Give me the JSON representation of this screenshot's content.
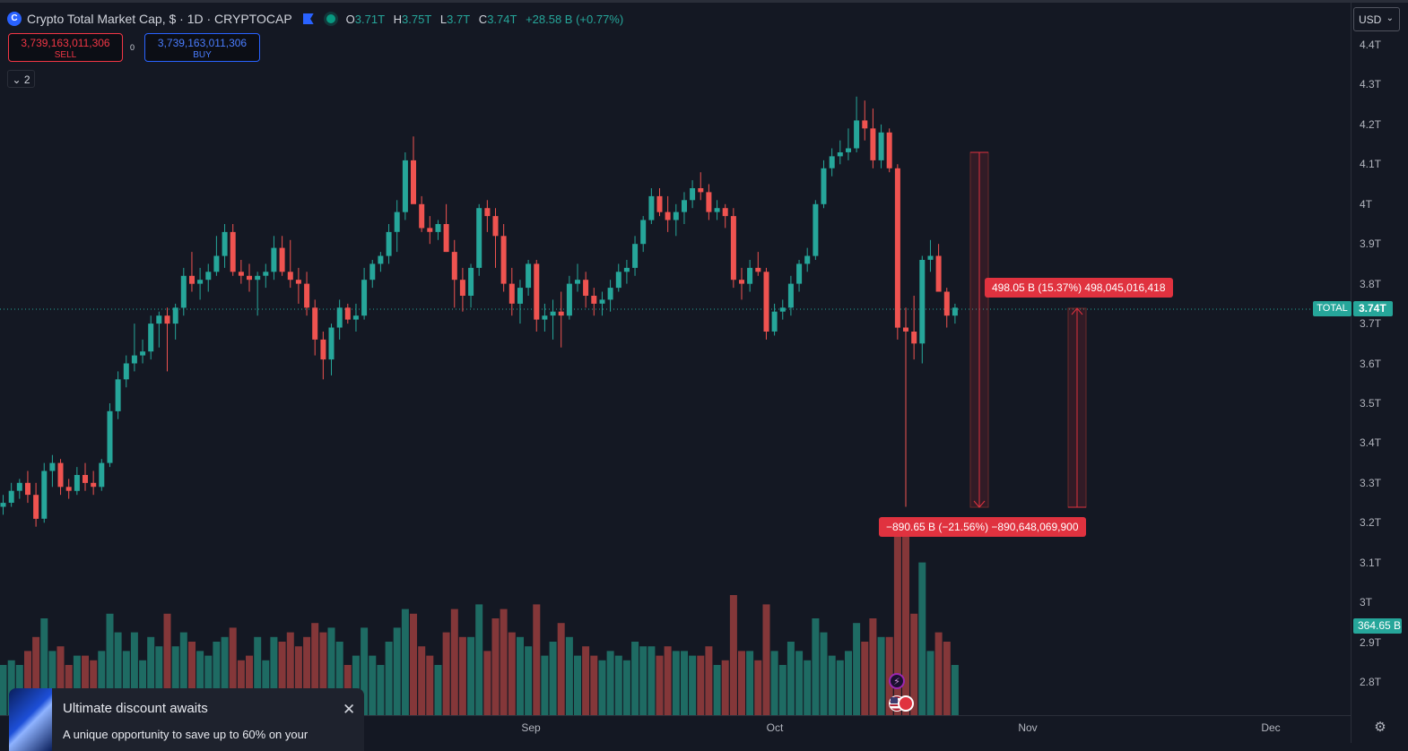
{
  "header": {
    "logo_icon": "crypto-cap-logo-icon",
    "symbol_title": "Crypto Total Market Cap, $ · 1D · CRYPTOCAP",
    "ohlc": {
      "o_label": "O",
      "o": "3.71T",
      "h_label": "H",
      "h": "3.75T",
      "l_label": "L",
      "l": "3.7T",
      "c_label": "C",
      "c": "3.74T",
      "change": "+28.58 B (+0.77%)"
    }
  },
  "trade": {
    "sell_price": "3,739,163,011,306",
    "sell_label": "SELL",
    "spread": "0",
    "buy_price": "3,739,163,011,306",
    "buy_label": "BUY"
  },
  "indicators_toggle": {
    "chevron": "⌄",
    "count": "2"
  },
  "currency": {
    "label": "USD",
    "chevron": "⌄"
  },
  "price_axis": [
    "4.4T",
    "4.3T",
    "4.2T",
    "4.1T",
    "4T",
    "3.9T",
    "3.8T",
    "3.7T",
    "3.6T",
    "3.5T",
    "3.4T",
    "3.3T",
    "3.2T",
    "3.1T",
    "3T",
    "2.9T",
    "2.8T"
  ],
  "time_axis": [
    "Sep",
    "Oct",
    "Nov",
    "Dec"
  ],
  "last_price": {
    "symbol": "TOTAL",
    "value": "3.74T",
    "volume": "364.65 B"
  },
  "measures": {
    "up": "498.05 B (15.37%) 498,045,016,418",
    "down": "−890.65 B (−21.56%) −890,648,069,900"
  },
  "promo": {
    "title": "Ultimate discount awaits",
    "text": "A unique opportunity to save up to 60% on your",
    "close": "✕"
  },
  "colors": {
    "up": "#26a69a",
    "down": "#ef5350",
    "vol_up": "#1e6b63",
    "vol_down": "#843739",
    "accent": "#2962ff"
  },
  "chart_data": {
    "type": "candlestick",
    "y_unit": "T",
    "ylim": [
      2.75,
      4.45
    ],
    "candles_ohlc": [
      [
        3.24,
        3.27,
        3.22,
        3.25
      ],
      [
        3.25,
        3.3,
        3.24,
        3.28
      ],
      [
        3.28,
        3.31,
        3.26,
        3.3
      ],
      [
        3.3,
        3.33,
        3.25,
        3.27
      ],
      [
        3.27,
        3.3,
        3.19,
        3.21
      ],
      [
        3.21,
        3.35,
        3.2,
        3.33
      ],
      [
        3.33,
        3.37,
        3.29,
        3.35
      ],
      [
        3.35,
        3.36,
        3.27,
        3.29
      ],
      [
        3.29,
        3.31,
        3.26,
        3.28
      ],
      [
        3.28,
        3.34,
        3.27,
        3.32
      ],
      [
        3.32,
        3.35,
        3.28,
        3.3
      ],
      [
        3.3,
        3.33,
        3.27,
        3.29
      ],
      [
        3.29,
        3.36,
        3.28,
        3.35
      ],
      [
        3.35,
        3.5,
        3.34,
        3.48
      ],
      [
        3.48,
        3.58,
        3.46,
        3.56
      ],
      [
        3.56,
        3.62,
        3.54,
        3.6
      ],
      [
        3.6,
        3.7,
        3.58,
        3.62
      ],
      [
        3.62,
        3.66,
        3.6,
        3.63
      ],
      [
        3.63,
        3.72,
        3.61,
        3.7
      ],
      [
        3.7,
        3.73,
        3.64,
        3.72
      ],
      [
        3.72,
        3.74,
        3.58,
        3.7
      ],
      [
        3.7,
        3.75,
        3.66,
        3.74
      ],
      [
        3.74,
        3.84,
        3.72,
        3.82
      ],
      [
        3.82,
        3.88,
        3.78,
        3.8
      ],
      [
        3.8,
        3.84,
        3.76,
        3.81
      ],
      [
        3.81,
        3.85,
        3.78,
        3.83
      ],
      [
        3.83,
        3.92,
        3.82,
        3.87
      ],
      [
        3.87,
        3.95,
        3.84,
        3.93
      ],
      [
        3.93,
        3.95,
        3.82,
        3.83
      ],
      [
        3.83,
        3.86,
        3.8,
        3.82
      ],
      [
        3.82,
        3.85,
        3.78,
        3.81
      ],
      [
        3.81,
        3.83,
        3.72,
        3.82
      ],
      [
        3.82,
        3.85,
        3.79,
        3.83
      ],
      [
        3.83,
        3.92,
        3.81,
        3.89
      ],
      [
        3.89,
        3.92,
        3.82,
        3.83
      ],
      [
        3.83,
        3.91,
        3.79,
        3.81
      ],
      [
        3.81,
        3.84,
        3.75,
        3.8
      ],
      [
        3.8,
        3.83,
        3.72,
        3.74
      ],
      [
        3.74,
        3.76,
        3.62,
        3.66
      ],
      [
        3.66,
        3.68,
        3.56,
        3.61
      ],
      [
        3.61,
        3.7,
        3.57,
        3.69
      ],
      [
        3.69,
        3.76,
        3.66,
        3.74
      ],
      [
        3.74,
        3.75,
        3.7,
        3.71
      ],
      [
        3.71,
        3.75,
        3.68,
        3.72
      ],
      [
        3.72,
        3.84,
        3.71,
        3.81
      ],
      [
        3.81,
        3.86,
        3.79,
        3.85
      ],
      [
        3.85,
        3.88,
        3.83,
        3.87
      ],
      [
        3.87,
        3.95,
        3.85,
        3.93
      ],
      [
        3.93,
        4.01,
        3.88,
        3.98
      ],
      [
        3.98,
        4.13,
        3.96,
        4.11
      ],
      [
        4.11,
        4.17,
        4.01,
        4.0
      ],
      [
        4.0,
        4.02,
        3.93,
        3.94
      ],
      [
        3.94,
        3.97,
        3.9,
        3.93
      ],
      [
        3.93,
        3.96,
        3.91,
        3.95
      ],
      [
        3.95,
        4.0,
        3.88,
        3.88
      ],
      [
        3.88,
        3.91,
        3.74,
        3.81
      ],
      [
        3.81,
        3.84,
        3.73,
        3.77
      ],
      [
        3.77,
        3.85,
        3.74,
        3.84
      ],
      [
        3.84,
        4.0,
        3.82,
        3.99
      ],
      [
        3.99,
        4.01,
        3.93,
        3.97
      ],
      [
        3.97,
        3.99,
        3.84,
        3.92
      ],
      [
        3.92,
        3.95,
        3.78,
        3.8
      ],
      [
        3.8,
        3.84,
        3.72,
        3.75
      ],
      [
        3.75,
        3.81,
        3.7,
        3.79
      ],
      [
        3.79,
        3.86,
        3.77,
        3.85
      ],
      [
        3.85,
        3.86,
        3.68,
        3.71
      ],
      [
        3.71,
        3.75,
        3.68,
        3.72
      ],
      [
        3.72,
        3.76,
        3.66,
        3.73
      ],
      [
        3.73,
        3.78,
        3.64,
        3.72
      ],
      [
        3.72,
        3.82,
        3.71,
        3.8
      ],
      [
        3.8,
        3.85,
        3.78,
        3.81
      ],
      [
        3.81,
        3.83,
        3.74,
        3.77
      ],
      [
        3.77,
        3.79,
        3.72,
        3.75
      ],
      [
        3.75,
        3.78,
        3.72,
        3.76
      ],
      [
        3.76,
        3.81,
        3.73,
        3.79
      ],
      [
        3.79,
        3.85,
        3.78,
        3.83
      ],
      [
        3.83,
        3.86,
        3.8,
        3.84
      ],
      [
        3.84,
        3.92,
        3.82,
        3.9
      ],
      [
        3.9,
        3.97,
        3.88,
        3.96
      ],
      [
        3.96,
        4.04,
        3.95,
        4.02
      ],
      [
        4.02,
        4.04,
        3.97,
        3.98
      ],
      [
        3.98,
        4.02,
        3.93,
        3.96
      ],
      [
        3.96,
        4.0,
        3.92,
        3.98
      ],
      [
        3.98,
        4.03,
        3.95,
        4.01
      ],
      [
        4.01,
        4.06,
        3.99,
        4.04
      ],
      [
        4.04,
        4.08,
        4.01,
        4.03
      ],
      [
        4.03,
        4.05,
        3.96,
        3.98
      ],
      [
        3.98,
        4.01,
        3.96,
        3.99
      ],
      [
        3.99,
        4.0,
        3.94,
        3.97
      ],
      [
        3.97,
        3.99,
        3.79,
        3.81
      ],
      [
        3.81,
        3.84,
        3.76,
        3.8
      ],
      [
        3.8,
        3.86,
        3.78,
        3.84
      ],
      [
        3.84,
        3.88,
        3.82,
        3.83
      ],
      [
        3.83,
        3.84,
        3.66,
        3.68
      ],
      [
        3.68,
        3.75,
        3.67,
        3.73
      ],
      [
        3.73,
        3.76,
        3.71,
        3.74
      ],
      [
        3.74,
        3.82,
        3.72,
        3.8
      ],
      [
        3.8,
        3.86,
        3.78,
        3.85
      ],
      [
        3.85,
        3.89,
        3.83,
        3.87
      ],
      [
        3.87,
        4.01,
        3.86,
        4.0
      ],
      [
        4.0,
        4.11,
        3.99,
        4.09
      ],
      [
        4.09,
        4.14,
        4.07,
        4.12
      ],
      [
        4.12,
        4.16,
        4.1,
        4.13
      ],
      [
        4.13,
        4.19,
        4.11,
        4.14
      ],
      [
        4.14,
        4.27,
        4.13,
        4.21
      ],
      [
        4.21,
        4.26,
        4.16,
        4.19
      ],
      [
        4.19,
        4.24,
        4.09,
        4.11
      ],
      [
        4.11,
        4.2,
        4.09,
        4.18
      ],
      [
        4.18,
        4.19,
        4.08,
        4.09
      ],
      [
        4.09,
        4.1,
        3.66,
        3.69
      ],
      [
        3.69,
        3.74,
        3.24,
        3.68
      ],
      [
        3.68,
        3.77,
        3.61,
        3.65
      ],
      [
        3.65,
        3.87,
        3.6,
        3.86
      ],
      [
        3.86,
        3.91,
        3.83,
        3.87
      ],
      [
        3.87,
        3.9,
        3.78,
        3.78
      ],
      [
        3.78,
        3.79,
        3.69,
        3.72
      ],
      [
        3.72,
        3.75,
        3.7,
        3.74
      ]
    ],
    "volume_colors": "matches candle direction",
    "measurements": [
      {
        "label": "498.05 B (15.37%) 498,045,016,418",
        "from": 3.24,
        "to": 3.74
      },
      {
        "label": "−890.65 B (−21.56%) −890,648,069,900",
        "from": 4.13,
        "to": 3.24
      }
    ]
  }
}
